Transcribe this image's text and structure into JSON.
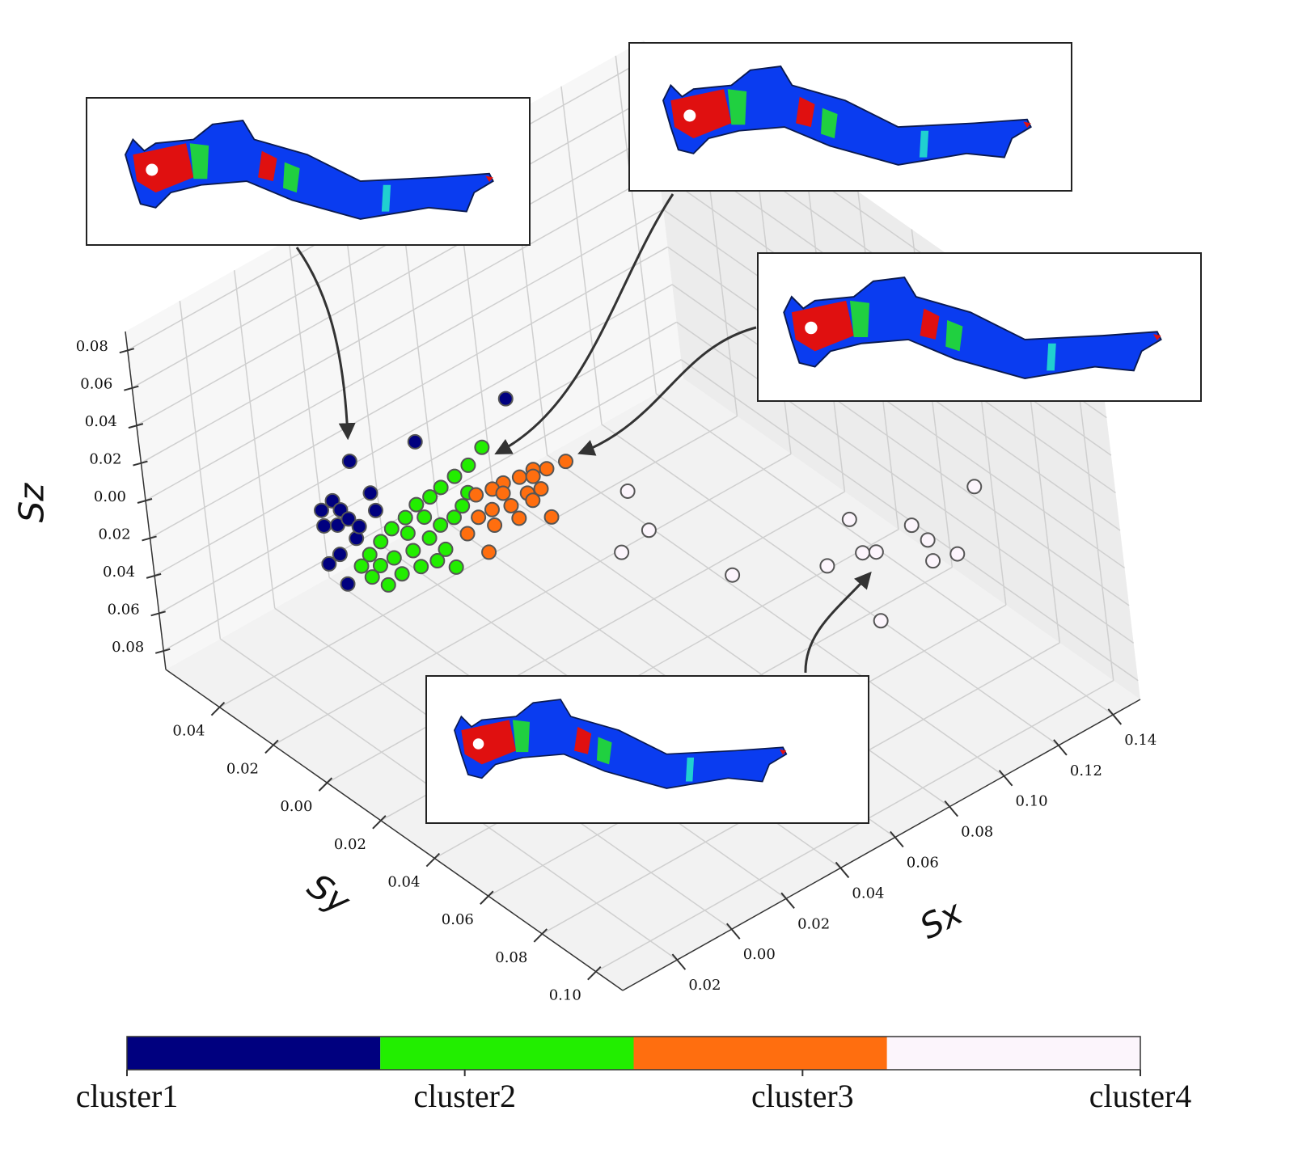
{
  "chart_data": {
    "type": "scatter3d",
    "x_label": "Sx",
    "y_label": "Sy",
    "z_label": "Sz",
    "xlim": [
      -0.04,
      0.15
    ],
    "ylim": [
      -0.06,
      0.11
    ],
    "zlim": [
      -0.09,
      0.09
    ],
    "xticks": [
      {
        "value": -0.02,
        "label": "0.02"
      },
      {
        "value": 0,
        "label": "0.00"
      },
      0.02,
      0.04,
      0.06,
      0.08,
      {
        "value": 0.1,
        "label": "0.10"
      },
      0.12,
      0.14
    ],
    "yticks": [
      {
        "value": -0.04,
        "label": "0.04"
      },
      {
        "value": -0.02,
        "label": "0.02"
      },
      {
        "value": 0,
        "label": "0.00"
      },
      0.02,
      0.04,
      0.06,
      0.08,
      {
        "value": 0.1,
        "label": "0.10"
      }
    ],
    "zticks": [
      0.08,
      0.06,
      0.04,
      0.02,
      {
        "value": 0,
        "label": "0.00"
      },
      {
        "value": -0.02,
        "label": "0.02"
      },
      {
        "value": -0.04,
        "label": "0.04"
      },
      {
        "value": -0.06,
        "label": "0.06"
      },
      {
        "value": -0.08,
        "label": "0.08"
      }
    ],
    "grid": true,
    "legend": "bottom",
    "series": [
      {
        "name": "cluster1",
        "color": "#00007f",
        "x": [
          0.033,
          0.017,
          0.003,
          0.008,
          -0.002,
          -0.007,
          -0.003,
          0.004,
          -0.011,
          -0.008,
          -0.004,
          -0.008,
          -0.021,
          -0.023,
          -0.016,
          -0.004
        ],
        "y": [
          0.005,
          -0.015,
          -0.026,
          -0.025,
          -0.029,
          -0.028,
          -0.025,
          -0.019,
          -0.023,
          -0.021,
          -0.021,
          -0.014,
          -0.011,
          -0.002,
          -0.012,
          -0.017
        ],
        "z": [
          0.06,
          0.03,
          0.02,
          0,
          0,
          0,
          0,
          0,
          0,
          0,
          0,
          0,
          0,
          0,
          0,
          0
        ]
      },
      {
        "name": "cluster2",
        "color": "#22ee00",
        "x": [
          0.044,
          0.036,
          0.03,
          0.024,
          0.019,
          0.014,
          0.008,
          0.002,
          -0.004,
          -0.01,
          -0.015,
          -0.016,
          -0.015,
          -0.009,
          -0.003,
          0.002,
          0.004,
          0.007,
          0.007,
          0.0,
          -0.006,
          -0.011,
          0.018,
          0.013,
          0.012,
          0.004,
          0.028,
          0.023
        ],
        "y": [
          -0.02,
          -0.017,
          -0.016,
          -0.015,
          -0.014,
          -0.014,
          -0.012,
          -0.011,
          -0.009,
          -0.007,
          -0.005,
          0.0,
          0.005,
          0.004,
          0.005,
          0.006,
          0.011,
          0.004,
          -0.002,
          -0.001,
          -0.002,
          -0.002,
          -0.004,
          -0.004,
          -0.009,
          -0.007,
          -0.009,
          -0.006
        ],
        "z": [
          0,
          0,
          0,
          0,
          0,
          0,
          0,
          0,
          0,
          0,
          0,
          0,
          0,
          0,
          0,
          0,
          0,
          0,
          0,
          0,
          0,
          0,
          0,
          0,
          0,
          0,
          0,
          0
        ]
      },
      {
        "name": "cluster3",
        "color": "#ff6e0f",
        "x": [
          0.057,
          0.051,
          0.048,
          0.043,
          0.038,
          0.034,
          0.029,
          0.04,
          0.044,
          0.038,
          0.039,
          0.033,
          0.028,
          0.023,
          0.024,
          0.016,
          0.015,
          0.031,
          0.035,
          0.046
        ],
        "y": [
          -0.002,
          -0.003,
          -0.005,
          -0.005,
          -0.006,
          -0.006,
          -0.007,
          0.001,
          0.002,
          0.012,
          0.004,
          0.002,
          0.0,
          0.0,
          0.005,
          0.003,
          0.012,
          0.007,
          -0.003,
          -0.003
        ],
        "z": [
          0,
          0,
          0,
          0,
          0,
          0,
          0,
          0,
          0,
          0,
          0,
          0,
          0,
          0,
          0,
          0,
          0,
          0,
          0,
          0
        ]
      },
      {
        "name": "cluster4",
        "color": "#fcf5fc",
        "x": [
          0.133,
          0.098,
          0.109,
          0.108,
          0.11,
          0.103,
          0.091,
          0.094,
          0.08,
          0.058,
          0.042,
          0.054,
          0.061,
          0.075
        ],
        "y": [
          0.073,
          0.062,
          0.074,
          0.081,
          0.09,
          0.088,
          0.074,
          0.076,
          0.072,
          0.059,
          0.034,
          0.032,
          0.017,
          0.097
        ],
        "z": [
          0,
          0,
          0,
          0,
          0,
          0,
          0,
          0,
          0,
          0,
          0,
          0,
          0,
          0
        ]
      }
    ]
  }
}
